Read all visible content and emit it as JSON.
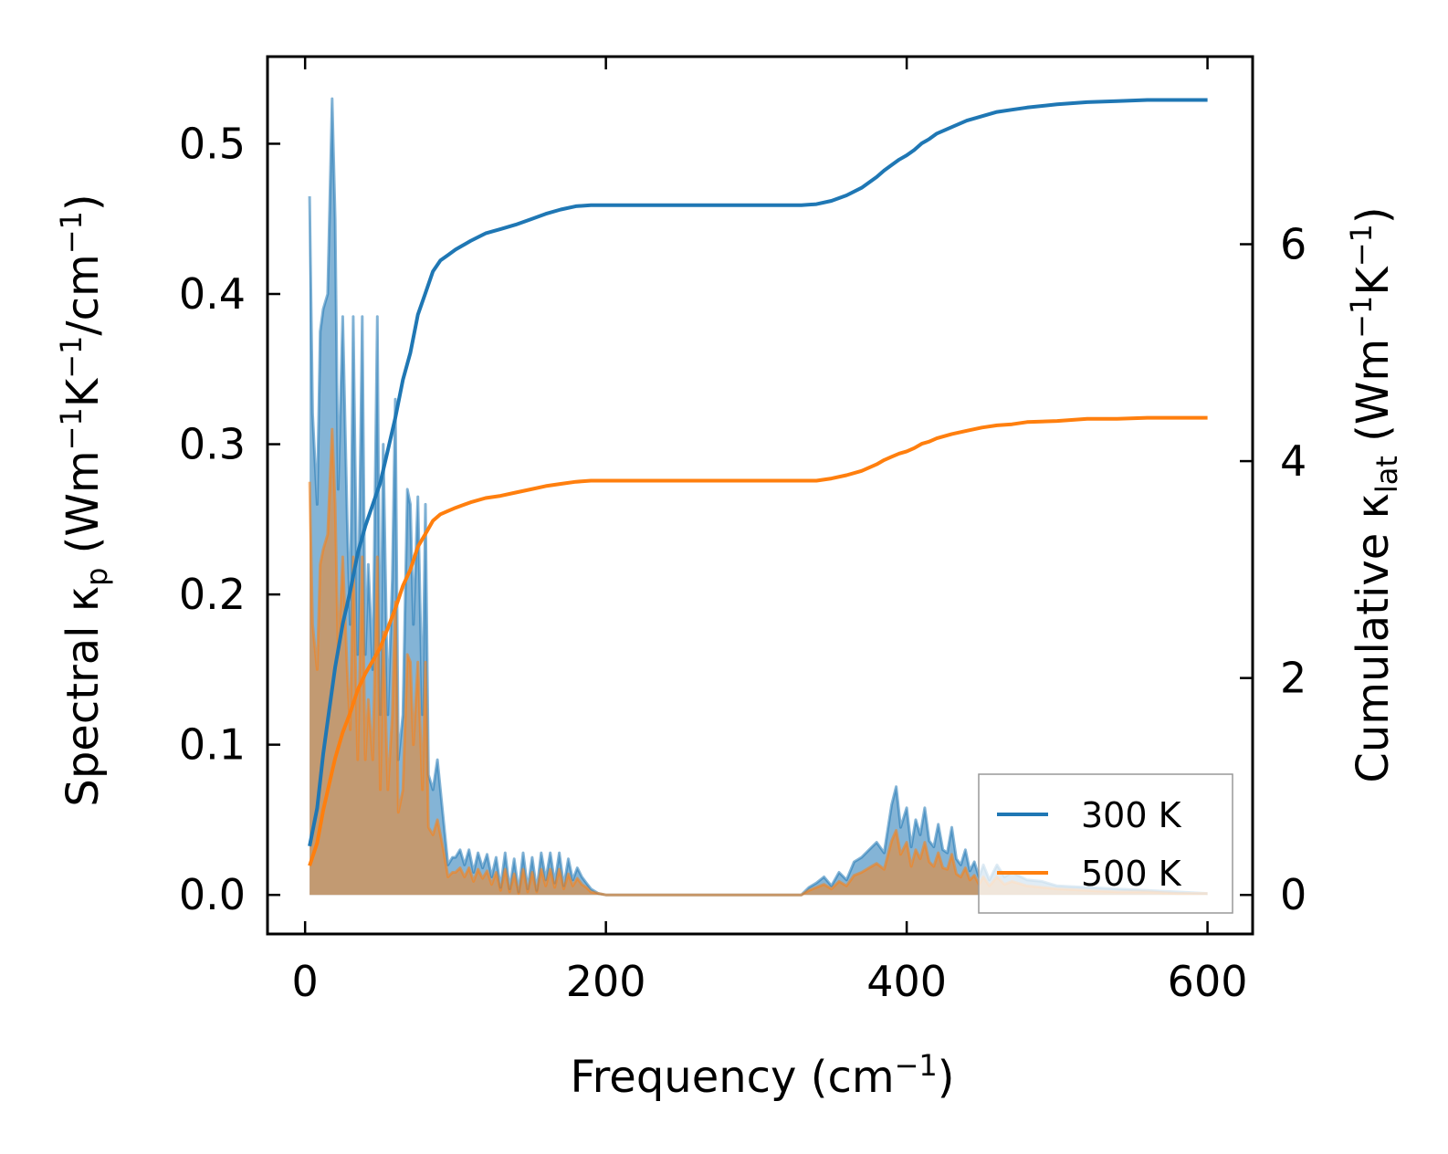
{
  "chart_data": {
    "type": "line",
    "title": "",
    "xlabel": "Frequency (cm⁻¹)",
    "ylabel_left": "Spectral κₚ (Wm⁻¹K⁻¹/cm⁻¹)",
    "ylabel_right": "Cumulative κₗₐₜ (Wm⁻¹K⁻¹)",
    "xlim": [
      -25,
      630
    ],
    "ylim_left": [
      -0.026,
      0.558
    ],
    "ylim_right": [
      -0.36,
      7.73
    ],
    "x_ticks": [
      0,
      200,
      400,
      600
    ],
    "y_ticks_left": [
      0.0,
      0.1,
      0.2,
      0.3,
      0.4,
      0.5
    ],
    "y_ticks_left_labels": [
      "0.0",
      "0.1",
      "0.2",
      "0.3",
      "0.4",
      "0.5"
    ],
    "y_ticks_right": [
      0,
      2,
      4,
      6
    ],
    "legend": {
      "position": "lower-right",
      "entries": [
        "300 K",
        "500 K"
      ]
    },
    "series": [
      {
        "name": "300 K",
        "color": "#1f77b4",
        "spectral": {
          "x": [
            3,
            5,
            8,
            10,
            12,
            15,
            18,
            20,
            22,
            25,
            28,
            30,
            32,
            35,
            38,
            40,
            42,
            45,
            48,
            50,
            52,
            55,
            58,
            60,
            62,
            65,
            68,
            70,
            72,
            75,
            78,
            80,
            82,
            85,
            88,
            90,
            92,
            95,
            98,
            100,
            103,
            106,
            109,
            112,
            115,
            118,
            121,
            124,
            127,
            130,
            133,
            136,
            139,
            142,
            145,
            148,
            151,
            154,
            157,
            160,
            163,
            166,
            169,
            172,
            175,
            178,
            181,
            184,
            187,
            190,
            195,
            200,
            220,
            250,
            280,
            310,
            330,
            335,
            340,
            345,
            350,
            355,
            360,
            365,
            370,
            375,
            380,
            385,
            390,
            393,
            396,
            400,
            403,
            406,
            409,
            412,
            415,
            418,
            421,
            424,
            427,
            430,
            433,
            436,
            439,
            442,
            445,
            448,
            451,
            455,
            460,
            465,
            470,
            480,
            490,
            500,
            520,
            540,
            560,
            580,
            600
          ],
          "y": [
            0.465,
            0.32,
            0.26,
            0.375,
            0.39,
            0.4,
            0.53,
            0.45,
            0.27,
            0.385,
            0.25,
            0.18,
            0.385,
            0.16,
            0.385,
            0.16,
            0.22,
            0.15,
            0.385,
            0.12,
            0.3,
            0.12,
            0.21,
            0.33,
            0.09,
            0.12,
            0.27,
            0.26,
            0.18,
            0.265,
            0.12,
            0.26,
            0.08,
            0.07,
            0.09,
            0.07,
            0.05,
            0.02,
            0.025,
            0.025,
            0.03,
            0.02,
            0.03,
            0.015,
            0.028,
            0.018,
            0.027,
            0.012,
            0.025,
            0.005,
            0.028,
            0.004,
            0.024,
            0.002,
            0.028,
            0.004,
            0.025,
            0.003,
            0.028,
            0.01,
            0.028,
            0.008,
            0.028,
            0.006,
            0.024,
            0.01,
            0.018,
            0.012,
            0.008,
            0.004,
            0.001,
            0.0,
            0.0,
            0.0,
            0.0,
            0.0,
            0.0,
            0.005,
            0.008,
            0.012,
            0.006,
            0.015,
            0.01,
            0.022,
            0.025,
            0.03,
            0.035,
            0.028,
            0.06,
            0.072,
            0.045,
            0.058,
            0.032,
            0.05,
            0.04,
            0.058,
            0.036,
            0.032,
            0.047,
            0.03,
            0.028,
            0.045,
            0.024,
            0.02,
            0.03,
            0.016,
            0.022,
            0.012,
            0.02,
            0.01,
            0.02,
            0.012,
            0.015,
            0.01,
            0.009,
            0.006,
            0.005,
            0.004,
            0.003,
            0.002,
            0.001
          ]
        },
        "cumulative": {
          "x": [
            3,
            8,
            12,
            16,
            20,
            25,
            30,
            35,
            40,
            45,
            50,
            55,
            60,
            65,
            70,
            75,
            80,
            85,
            90,
            95,
            100,
            110,
            120,
            130,
            140,
            150,
            160,
            170,
            180,
            190,
            200,
            250,
            300,
            330,
            340,
            350,
            360,
            370,
            380,
            385,
            390,
            395,
            400,
            405,
            410,
            415,
            420,
            430,
            440,
            450,
            460,
            470,
            480,
            500,
            520,
            540,
            560,
            580,
            600
          ],
          "y": [
            0.45,
            0.8,
            1.3,
            1.7,
            2.1,
            2.5,
            2.8,
            3.15,
            3.4,
            3.6,
            3.8,
            4.1,
            4.4,
            4.75,
            5.0,
            5.35,
            5.55,
            5.75,
            5.85,
            5.9,
            5.95,
            6.03,
            6.1,
            6.14,
            6.18,
            6.23,
            6.28,
            6.32,
            6.35,
            6.36,
            6.36,
            6.36,
            6.36,
            6.36,
            6.37,
            6.4,
            6.45,
            6.52,
            6.62,
            6.68,
            6.73,
            6.78,
            6.82,
            6.87,
            6.93,
            6.97,
            7.02,
            7.08,
            7.14,
            7.18,
            7.22,
            7.24,
            7.26,
            7.29,
            7.31,
            7.32,
            7.33,
            7.33,
            7.33
          ]
        }
      },
      {
        "name": "500 K",
        "color": "#ff7f0e",
        "spectral": {
          "x": [
            3,
            5,
            8,
            10,
            12,
            15,
            18,
            20,
            22,
            25,
            28,
            30,
            32,
            35,
            38,
            40,
            42,
            45,
            48,
            50,
            52,
            55,
            58,
            60,
            62,
            65,
            68,
            70,
            72,
            75,
            78,
            80,
            82,
            85,
            88,
            90,
            92,
            95,
            98,
            100,
            103,
            106,
            109,
            112,
            115,
            118,
            121,
            124,
            127,
            130,
            133,
            136,
            139,
            142,
            145,
            148,
            151,
            154,
            157,
            160,
            163,
            166,
            169,
            172,
            175,
            178,
            181,
            184,
            187,
            190,
            195,
            200,
            220,
            250,
            280,
            310,
            330,
            335,
            340,
            345,
            350,
            355,
            360,
            365,
            370,
            375,
            380,
            385,
            390,
            393,
            396,
            400,
            403,
            406,
            409,
            412,
            415,
            418,
            421,
            424,
            427,
            430,
            433,
            436,
            439,
            442,
            445,
            448,
            451,
            455,
            460,
            465,
            470,
            480,
            490,
            500,
            520,
            540,
            560,
            580,
            600
          ],
          "y": [
            0.275,
            0.18,
            0.15,
            0.22,
            0.23,
            0.24,
            0.31,
            0.26,
            0.16,
            0.225,
            0.15,
            0.11,
            0.225,
            0.09,
            0.225,
            0.09,
            0.13,
            0.09,
            0.225,
            0.07,
            0.175,
            0.07,
            0.12,
            0.195,
            0.055,
            0.07,
            0.16,
            0.155,
            0.1,
            0.155,
            0.07,
            0.155,
            0.045,
            0.04,
            0.05,
            0.04,
            0.03,
            0.012,
            0.015,
            0.015,
            0.018,
            0.012,
            0.018,
            0.009,
            0.017,
            0.011,
            0.016,
            0.007,
            0.015,
            0.003,
            0.017,
            0.002,
            0.014,
            0.001,
            0.017,
            0.002,
            0.015,
            0.002,
            0.017,
            0.006,
            0.017,
            0.005,
            0.017,
            0.004,
            0.014,
            0.006,
            0.011,
            0.007,
            0.005,
            0.002,
            0.001,
            0.0,
            0.0,
            0.0,
            0.0,
            0.0,
            0.0,
            0.003,
            0.005,
            0.007,
            0.004,
            0.009,
            0.006,
            0.013,
            0.015,
            0.018,
            0.021,
            0.017,
            0.036,
            0.043,
            0.027,
            0.035,
            0.019,
            0.03,
            0.024,
            0.035,
            0.022,
            0.019,
            0.028,
            0.018,
            0.017,
            0.027,
            0.014,
            0.012,
            0.018,
            0.01,
            0.013,
            0.007,
            0.012,
            0.006,
            0.012,
            0.007,
            0.009,
            0.006,
            0.005,
            0.004,
            0.003,
            0.002,
            0.002,
            0.001,
            0.001
          ]
        },
        "cumulative": {
          "x": [
            3,
            8,
            12,
            16,
            20,
            25,
            30,
            35,
            40,
            45,
            50,
            55,
            60,
            65,
            70,
            75,
            80,
            85,
            90,
            95,
            100,
            110,
            120,
            130,
            140,
            150,
            160,
            170,
            180,
            190,
            200,
            250,
            300,
            330,
            340,
            350,
            360,
            370,
            380,
            385,
            390,
            395,
            400,
            405,
            410,
            415,
            420,
            430,
            440,
            450,
            460,
            470,
            480,
            500,
            520,
            540,
            560,
            580,
            600
          ],
          "y": [
            0.27,
            0.48,
            0.78,
            1.02,
            1.26,
            1.5,
            1.68,
            1.89,
            2.04,
            2.16,
            2.28,
            2.46,
            2.64,
            2.85,
            3.0,
            3.21,
            3.33,
            3.45,
            3.51,
            3.54,
            3.57,
            3.62,
            3.66,
            3.68,
            3.71,
            3.74,
            3.77,
            3.79,
            3.81,
            3.82,
            3.82,
            3.82,
            3.82,
            3.82,
            3.82,
            3.84,
            3.87,
            3.91,
            3.97,
            4.01,
            4.04,
            4.07,
            4.09,
            4.12,
            4.16,
            4.18,
            4.21,
            4.25,
            4.28,
            4.31,
            4.33,
            4.34,
            4.36,
            4.37,
            4.39,
            4.39,
            4.4,
            4.4,
            4.4
          ]
        }
      }
    ]
  }
}
